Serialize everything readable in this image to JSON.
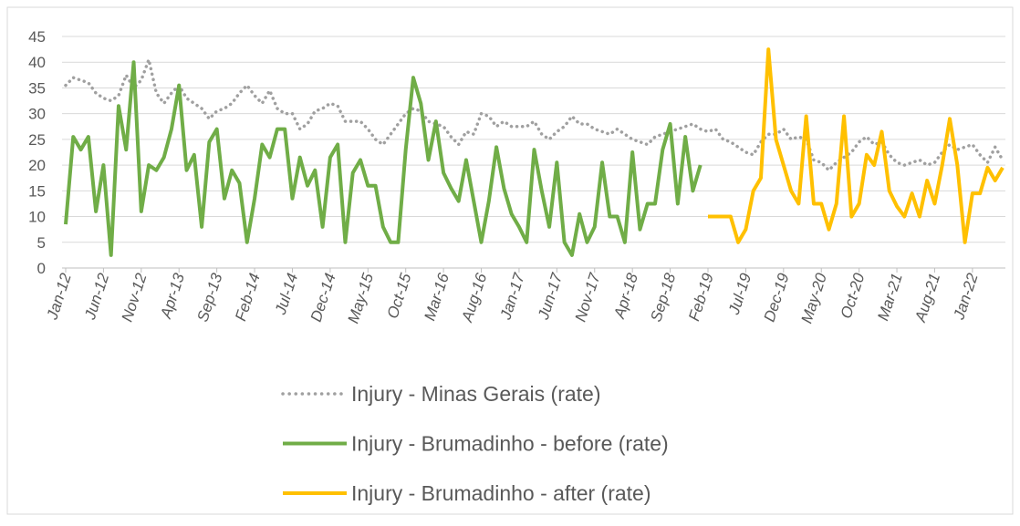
{
  "chart_data": {
    "type": "line",
    "categories": [
      "Jan-12",
      null,
      null,
      null,
      null,
      "Jun-12",
      null,
      null,
      null,
      null,
      "Nov-12",
      null,
      null,
      null,
      null,
      "Apr-13",
      null,
      null,
      null,
      null,
      "Sep-13",
      null,
      null,
      null,
      null,
      "Feb-14",
      null,
      null,
      null,
      null,
      "Jul-14",
      null,
      null,
      null,
      null,
      "Dec-14",
      null,
      null,
      null,
      null,
      "May-15",
      null,
      null,
      null,
      null,
      "Oct-15",
      null,
      null,
      null,
      null,
      "Mar-16",
      null,
      null,
      null,
      null,
      "Aug-16",
      null,
      null,
      null,
      null,
      "Jan-17",
      null,
      null,
      null,
      null,
      "Jun-17",
      null,
      null,
      null,
      null,
      "Nov-17",
      null,
      null,
      null,
      null,
      "Apr-18",
      null,
      null,
      null,
      null,
      "Sep-18",
      null,
      null,
      null,
      null,
      "Feb-19",
      null,
      null,
      null,
      null,
      "Jul-19",
      null,
      null,
      null,
      null,
      "Dec-19",
      null,
      null,
      null,
      null,
      "May-20",
      null,
      null,
      null,
      null,
      "Oct-20",
      null,
      null,
      null,
      null,
      "Mar-21",
      null,
      null,
      null,
      null,
      "Aug-21",
      null,
      null,
      null,
      null,
      "Jan-22",
      null,
      null,
      null,
      null
    ],
    "series": [
      {
        "name": "Injury - Minas Gerais (rate)",
        "color": "#a0a0a0",
        "dashed": true,
        "values": [
          35.5,
          37,
          36.5,
          36,
          34,
          33,
          32.5,
          33.5,
          37.5,
          35,
          36.5,
          40.5,
          34,
          32,
          34,
          35.5,
          33,
          32,
          31,
          29,
          30.5,
          31,
          32,
          34,
          35.5,
          33.5,
          32,
          34.5,
          31,
          30,
          30,
          27,
          28,
          30.5,
          31,
          32,
          31.5,
          28.5,
          28.5,
          28.5,
          27,
          25,
          24,
          26,
          28,
          30,
          31,
          30.5,
          28.5,
          28,
          27.5,
          25.5,
          24,
          26.5,
          26,
          30,
          29.5,
          27.5,
          28.5,
          27.5,
          27.5,
          27.5,
          28.5,
          26,
          25,
          26.5,
          27.5,
          29.5,
          28,
          28,
          27,
          26.5,
          26,
          27,
          26,
          25,
          24.5,
          24,
          25.5,
          26,
          26.5,
          27,
          27.5,
          28,
          27,
          26.5,
          27,
          25,
          24.5,
          23.5,
          22.5,
          22,
          24.5,
          26,
          26,
          27,
          25,
          25.5,
          25,
          21,
          20.5,
          19,
          20.5,
          21.5,
          22.5,
          24.5,
          25.5,
          24,
          24.5,
          22,
          20.5,
          20,
          20.5,
          21,
          20,
          20.5,
          22.5,
          24,
          23,
          23.5,
          24,
          22,
          20.5,
          23.5,
          21
        ]
      },
      {
        "name": "Injury - Brumadinho - before (rate)",
        "color": "#70ad47",
        "values": [
          8.5,
          25.5,
          23,
          25.5,
          11,
          20,
          2.5,
          31.5,
          23,
          40,
          11,
          20,
          19,
          21.5,
          27,
          35.5,
          19,
          22,
          8,
          24.5,
          27,
          13.5,
          19,
          16.5,
          5,
          13.5,
          24,
          21.5,
          27,
          27,
          13.5,
          21.5,
          16,
          19,
          8,
          21.5,
          24,
          5,
          18.5,
          21,
          16,
          16,
          8,
          5,
          5,
          23,
          37,
          32,
          21,
          28.5,
          18.5,
          15.5,
          13,
          21,
          13,
          5,
          13,
          23.5,
          15.5,
          10.5,
          8,
          5,
          23,
          15,
          8,
          20.5,
          5,
          2.5,
          10.5,
          5,
          8,
          20.5,
          10,
          10,
          5,
          22.5,
          7.5,
          12.5,
          12.5,
          23,
          28,
          12.5,
          25.5,
          15,
          20,
          null,
          null,
          null,
          null,
          null,
          null,
          null,
          null,
          null,
          null,
          null,
          null,
          null,
          null,
          null,
          null,
          null,
          null,
          null,
          null,
          null,
          null,
          null,
          null,
          null,
          null,
          null,
          null,
          null,
          null,
          null,
          null,
          null,
          null,
          null,
          null,
          null,
          null,
          null,
          null
        ]
      },
      {
        "name": "Injury - Brumadinho - after (rate)",
        "color": "#ffc000",
        "values": [
          null,
          null,
          null,
          null,
          null,
          null,
          null,
          null,
          null,
          null,
          null,
          null,
          null,
          null,
          null,
          null,
          null,
          null,
          null,
          null,
          null,
          null,
          null,
          null,
          null,
          null,
          null,
          null,
          null,
          null,
          null,
          null,
          null,
          null,
          null,
          null,
          null,
          null,
          null,
          null,
          null,
          null,
          null,
          null,
          null,
          null,
          null,
          null,
          null,
          null,
          null,
          null,
          null,
          null,
          null,
          null,
          null,
          null,
          null,
          null,
          null,
          null,
          null,
          null,
          null,
          null,
          null,
          null,
          null,
          null,
          null,
          null,
          null,
          null,
          null,
          null,
          null,
          null,
          null,
          null,
          null,
          null,
          null,
          null,
          null,
          10,
          10,
          10,
          10,
          5,
          7.5,
          15,
          17.5,
          42.5,
          25,
          20,
          15,
          12.5,
          29.5,
          12.5,
          12.5,
          7.5,
          12.5,
          29.5,
          10,
          12.5,
          22,
          20,
          26.5,
          15,
          12,
          10,
          14.5,
          10,
          17,
          12.5,
          20,
          29,
          20,
          5,
          14.5,
          14.5,
          19.5,
          17,
          19.5
        ]
      }
    ],
    "ylim": [
      0,
      45
    ],
    "yticks": [
      0,
      5,
      10,
      15,
      20,
      25,
      30,
      35,
      40,
      45
    ],
    "grid": true,
    "legend": "bottom"
  }
}
